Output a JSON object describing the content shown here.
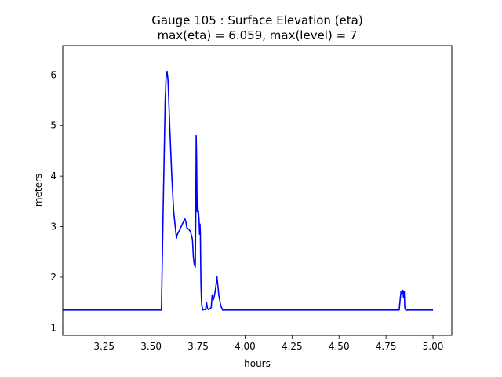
{
  "chart_data": {
    "type": "line",
    "title": "Gauge 105 : Surface Elevation (eta)",
    "subtitle": "max(eta) =   6.059,    max(level) = 7",
    "xlabel": "hours",
    "ylabel": "meters",
    "xlim": [
      3.03,
      5.1
    ],
    "ylim": [
      0.85,
      6.58
    ],
    "xticks": [
      3.25,
      3.5,
      3.75,
      4.0,
      4.25,
      4.5,
      4.75,
      5.0
    ],
    "xtick_labels": [
      "3.25",
      "3.50",
      "3.75",
      "4.00",
      "4.25",
      "4.50",
      "4.75",
      "5.00"
    ],
    "yticks": [
      1,
      2,
      3,
      4,
      5,
      6
    ],
    "ytick_labels": [
      "1",
      "2",
      "3",
      "4",
      "5",
      "6"
    ],
    "grid": false,
    "series": [
      {
        "color": "#0000ff",
        "x": [
          3.03,
          3.555,
          3.565,
          3.575,
          3.58,
          3.585,
          3.59,
          3.595,
          3.6,
          3.61,
          3.62,
          3.63,
          3.635,
          3.64,
          3.65,
          3.66,
          3.67,
          3.68,
          3.685,
          3.69,
          3.7,
          3.71,
          3.72,
          3.725,
          3.73,
          3.735,
          3.738,
          3.74,
          3.742,
          3.745,
          3.748,
          3.75,
          3.752,
          3.755,
          3.758,
          3.76,
          3.762,
          3.765,
          3.768,
          3.77,
          3.775,
          3.78,
          3.79,
          3.795,
          3.8,
          3.805,
          3.81,
          3.82,
          3.825,
          3.83,
          3.835,
          3.84,
          3.845,
          3.85,
          3.855,
          3.86,
          3.87,
          3.88,
          3.89,
          4.82,
          4.825,
          4.83,
          4.835,
          4.84,
          4.843,
          4.847,
          4.85,
          4.855,
          4.86,
          5.0
        ],
        "y": [
          1.35,
          1.35,
          3.5,
          5.5,
          5.95,
          6.059,
          5.9,
          5.4,
          4.9,
          4.0,
          3.3,
          2.95,
          2.77,
          2.85,
          2.92,
          3.0,
          3.08,
          3.15,
          3.1,
          2.98,
          2.95,
          2.9,
          2.75,
          2.4,
          2.25,
          2.2,
          3.3,
          4.8,
          4.4,
          3.3,
          3.6,
          3.25,
          3.3,
          3.15,
          2.85,
          3.05,
          2.9,
          1.9,
          1.55,
          1.45,
          1.35,
          1.36,
          1.36,
          1.5,
          1.38,
          1.36,
          1.37,
          1.4,
          1.65,
          1.55,
          1.6,
          1.7,
          1.82,
          2.02,
          1.85,
          1.65,
          1.45,
          1.35,
          1.35,
          1.35,
          1.55,
          1.72,
          1.68,
          1.74,
          1.6,
          1.72,
          1.4,
          1.35,
          1.35,
          1.35
        ]
      }
    ]
  }
}
